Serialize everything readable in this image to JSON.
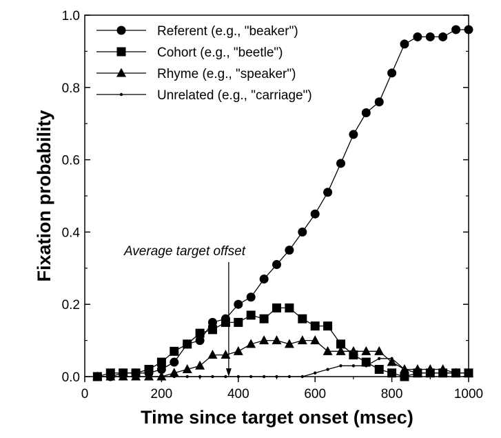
{
  "chart_data": {
    "type": "line",
    "xlabel": "Time since target onset (msec)",
    "ylabel": "Fixation probability",
    "xlim": [
      0,
      1000
    ],
    "ylim": [
      0,
      1.0
    ],
    "xticks": [
      0,
      200,
      400,
      600,
      800,
      1000
    ],
    "xtick_labels": [
      "0",
      "200",
      "400",
      "600",
      "800",
      "1000"
    ],
    "yticks": [
      0,
      0.2,
      0.4,
      0.6,
      0.8,
      1.0
    ],
    "ytick_labels": [
      "0.0",
      "0.2",
      "0.4",
      "0.6",
      "0.8",
      "1.0"
    ],
    "grid": false,
    "legend_position": "top-left",
    "annotation": {
      "text": "Average target offset",
      "x": 375
    },
    "x": [
      33,
      67,
      100,
      133,
      167,
      200,
      233,
      267,
      300,
      333,
      367,
      400,
      433,
      467,
      500,
      533,
      567,
      600,
      633,
      667,
      700,
      733,
      767,
      800,
      833,
      867,
      900,
      933,
      967,
      1000
    ],
    "series": [
      {
        "name": "Referent (e.g., \"beaker\")",
        "marker": "circle",
        "values": [
          0,
          0,
          0.01,
          0.01,
          0.01,
          0.02,
          0.04,
          0.09,
          0.1,
          0.15,
          0.16,
          0.2,
          0.22,
          0.27,
          0.31,
          0.35,
          0.4,
          0.45,
          0.51,
          0.59,
          0.67,
          0.73,
          0.76,
          0.84,
          0.92,
          0.94,
          0.94,
          0.94,
          0.96,
          0.96
        ]
      },
      {
        "name": "Cohort (e.g., \"beetle\")",
        "marker": "square",
        "values": [
          0,
          0.01,
          0.01,
          0.01,
          0.02,
          0.04,
          0.07,
          0.09,
          0.12,
          0.13,
          0.15,
          0.15,
          0.17,
          0.16,
          0.19,
          0.19,
          0.16,
          0.14,
          0.14,
          0.09,
          0.06,
          0.04,
          0.02,
          0.01,
          0,
          0.01,
          0.01,
          0.01,
          0.01,
          0.01
        ]
      },
      {
        "name": "Rhyme (e.g., \"speaker\")",
        "marker": "triangle",
        "values": [
          0,
          0,
          0,
          0,
          0,
          0,
          0.01,
          0.02,
          0.03,
          0.06,
          0.06,
          0.07,
          0.09,
          0.1,
          0.1,
          0.09,
          0.1,
          0.1,
          0.07,
          0.07,
          0.07,
          0.07,
          0.07,
          0.04,
          0.02,
          0.02,
          0.02,
          0.02,
          0.01,
          0.01
        ]
      },
      {
        "name": "Unrelated (e.g., \"carriage\")",
        "marker": "dot",
        "values": [
          0,
          0,
          0,
          0,
          0,
          0,
          0,
          0,
          0,
          0,
          0,
          0,
          0,
          0,
          0,
          0,
          0,
          0.01,
          0.02,
          0.03,
          0.03,
          0.03,
          0.05,
          0.05,
          0.02,
          0.01,
          0.01,
          0.01,
          0.01,
          0.01
        ]
      }
    ]
  }
}
